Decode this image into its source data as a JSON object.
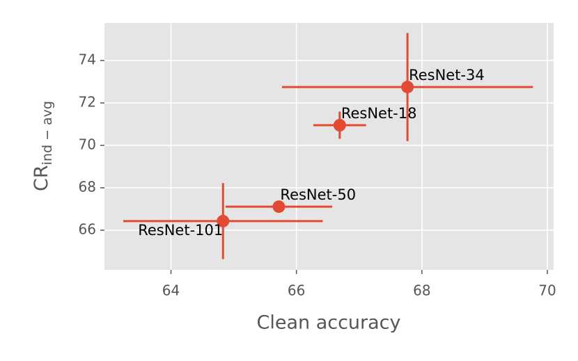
{
  "chart_data": {
    "type": "scatter",
    "xlabel": "Clean accuracy",
    "ylabel": {
      "main": "CR",
      "sub": "ind − avg"
    },
    "labels": [
      "ResNet-34",
      "ResNet-18",
      "ResNet-50",
      "ResNet-101"
    ],
    "x": [
      67.77,
      66.69,
      65.72,
      64.83
    ],
    "values": [
      72.75,
      70.95,
      67.11,
      66.43
    ],
    "xerr": [
      2.0,
      0.42,
      0.85,
      1.59
    ],
    "yerr": [
      2.55,
      0.64,
      0,
      1.79
    ],
    "color": "#e24a33",
    "xlim": [
      62.94,
      70.1
    ],
    "ylim": [
      64.13,
      75.77
    ],
    "xticks": [
      64,
      66,
      68,
      70
    ],
    "yticks": [
      66,
      68,
      70,
      72,
      74
    ],
    "grid": true
  }
}
